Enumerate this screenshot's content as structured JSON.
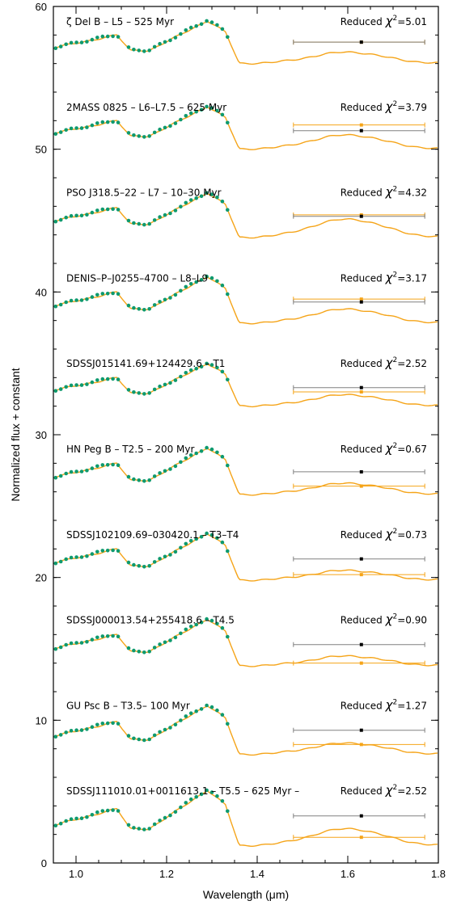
{
  "chart_data": {
    "type": "line",
    "xlabel": "Wavelength (μm)",
    "ylabel": "Normalized flux + constant",
    "xlim": [
      0.95,
      1.8
    ],
    "ylim": [
      0,
      60
    ],
    "xticks": [
      1.0,
      1.2,
      1.4,
      1.6,
      1.8
    ],
    "xtick_labels": [
      "1.0",
      "1.2",
      "1.4",
      "1.6",
      "1.8"
    ],
    "yticks": [
      0,
      10,
      20,
      30,
      40,
      50,
      60
    ],
    "ytick_labels": [
      "0",
      "10",
      "20",
      "30",
      "40",
      "50",
      "60"
    ],
    "colors": {
      "data": "#0e9a6e",
      "model": "#f5a418",
      "error_gray": "#808080",
      "error_orange": "#f5a418",
      "point_black": "#000000"
    },
    "panels": [
      {
        "label": "ζ Del B – L5 – 525 Myr",
        "chi_prefix": "Reduced ",
        "chi_symbol": "χ",
        "chi_sup": "2",
        "chi_value": "=5.01",
        "offset": 56.0,
        "peak": 2.0,
        "bump": 0.8,
        "err_black_y": 57.5,
        "err_orange_y": 57.5
      },
      {
        "label": "2MASS 0825 – L6–L7.5 – 625 Myr",
        "chi_prefix": "Reduced ",
        "chi_symbol": "χ",
        "chi_sup": "2",
        "chi_value": "=3.79",
        "offset": 50.0,
        "peak": 2.0,
        "bump": 1.0,
        "err_black_y": 51.3,
        "err_orange_y": 51.7
      },
      {
        "label": "PSO J318.5–22 – L7 – 10–30 Myr",
        "chi_prefix": "Reduced ",
        "chi_symbol": "χ",
        "chi_sup": "2",
        "chi_value": "=4.32",
        "offset": 43.8,
        "peak": 2.1,
        "bump": 1.3,
        "err_black_y": 45.3,
        "err_orange_y": 45.4
      },
      {
        "label": "DENIS–P–J0255–4700 – L8–L9",
        "chi_prefix": "Reduced ",
        "chi_symbol": "χ",
        "chi_sup": "2",
        "chi_value": "=3.17",
        "offset": 37.8,
        "peak": 2.2,
        "bump": 1.0,
        "err_black_y": 39.3,
        "err_orange_y": 39.5
      },
      {
        "label": "SDSSJ015141.69+124429.6 – T1",
        "chi_prefix": "Reduced ",
        "chi_symbol": "χ",
        "chi_sup": "2",
        "chi_value": "=2.52",
        "offset": 32.0,
        "peak": 2.0,
        "bump": 0.8,
        "err_black_y": 33.3,
        "err_orange_y": 33.0
      },
      {
        "label": "HN Peg B – T2.5 – 200 Myr",
        "chi_prefix": "Reduced ",
        "chi_symbol": "χ",
        "chi_sup": "2",
        "chi_value": "=0.67",
        "offset": 25.8,
        "peak": 2.2,
        "bump": 0.8,
        "err_black_y": 27.4,
        "err_orange_y": 26.4
      },
      {
        "label": "SDSSJ102109.69–030420.1 – T3–T4",
        "chi_prefix": "Reduced ",
        "chi_symbol": "χ",
        "chi_sup": "2",
        "chi_value": "=0.73",
        "offset": 19.8,
        "peak": 2.2,
        "bump": 0.7,
        "err_black_y": 21.3,
        "err_orange_y": 20.2
      },
      {
        "label": "SDSSJ000013.54+255418.6 – T4.5",
        "chi_prefix": "Reduced ",
        "chi_symbol": "χ",
        "chi_sup": "2",
        "chi_value": "=0.90",
        "offset": 13.8,
        "peak": 2.2,
        "bump": 0.7,
        "err_black_y": 15.3,
        "err_orange_y": 14.0
      },
      {
        "label": "GU Psc B – T3.5– 100 Myr",
        "chi_prefix": "Reduced ",
        "chi_symbol": "χ",
        "chi_sup": "2",
        "chi_value": "=1.27",
        "offset": 7.6,
        "peak": 2.3,
        "bump": 0.8,
        "err_black_y": 9.3,
        "err_orange_y": 8.3
      },
      {
        "label": "SDSSJ111010.01+0011613.1 – T5.5 – 625 Myr – ",
        "chi_prefix": "Reduced ",
        "chi_symbol": "χ",
        "chi_sup": "2",
        "chi_value": "=2.52",
        "offset": 1.2,
        "peak": 2.6,
        "bump": 1.2,
        "err_black_y": 3.3,
        "err_orange_y": 1.8
      }
    ]
  }
}
